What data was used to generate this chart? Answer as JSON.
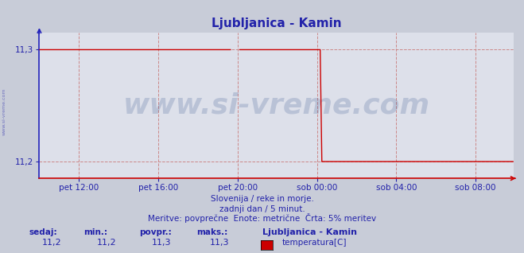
{
  "title": "Ljubljanica - Kamin",
  "title_color": "#2222aa",
  "bg_color": "#c8ccd8",
  "plot_bg_color": "#dde0ea",
  "line_color": "#cc0000",
  "axis_color": "#cc0000",
  "yaxis_color": "#2222bb",
  "text_color": "#2222aa",
  "grid_h_color": "#cc8888",
  "grid_v_color": "#cc8888",
  "ytick_labels": [
    "11,2",
    "11,3"
  ],
  "ytick_vals": [
    11.2,
    11.3
  ],
  "xlabel_ticks": [
    "pet 12:00",
    "pet 16:00",
    "pet 20:00",
    "sob 00:00",
    "sob 04:00",
    "sob 08:00"
  ],
  "xtick_positions": [
    24,
    72,
    120,
    168,
    216,
    264
  ],
  "watermark": "www.si-vreme.com",
  "watermark_color": "#1a3a80",
  "watermark_alpha": 0.18,
  "subtitle1": "Slovenija / reke in morje.",
  "subtitle2": "zadnji dan / 5 minut.",
  "subtitle3": "Meritve: povprečne  Enote: metrične  Črta: 5% meritev",
  "legend_title": "Ljubljanica - Kamin",
  "legend_label": "temperatura[C]",
  "legend_color": "#cc0000",
  "footer_labels": [
    "sedaj:",
    "min.:",
    "povpr.:",
    "maks.:"
  ],
  "footer_values": [
    "11,2",
    "11,2",
    "11,3",
    "11,3"
  ],
  "left_label": "www.si-vreme.com",
  "n_points": 288,
  "ylim_low": 11.185,
  "ylim_high": 11.315,
  "signal": {
    "flat_high_end": 117,
    "gap_start": 117,
    "gap_end": 121,
    "second_high_start": 121,
    "second_high_end": 171,
    "drop_to_low": 171
  }
}
